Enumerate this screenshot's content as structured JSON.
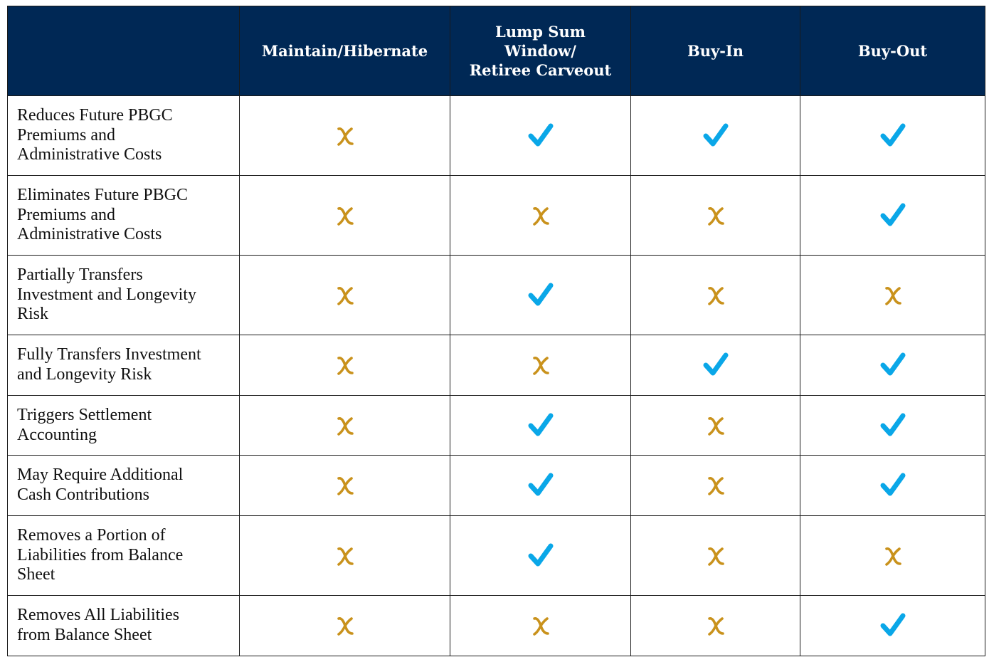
{
  "table": {
    "columns": [
      "",
      "Maintain/Hibernate",
      "Lump Sum Window/ Retiree Carveout",
      "Buy-In",
      "Buy-Out"
    ],
    "column_header_lines": [
      [],
      [
        "Maintain/Hibernate"
      ],
      [
        "Lump Sum",
        "Window/",
        "Retiree Carveout"
      ],
      [
        "Buy-In"
      ],
      [
        "Buy-Out"
      ]
    ],
    "rows": [
      {
        "label": "Reduces Future PBGC Premiums and Administrative Costs",
        "label_lines": [
          "Reduces Future PBGC",
          "Premiums and",
          "Administrative Costs"
        ],
        "values": [
          "x",
          "check",
          "check",
          "check"
        ]
      },
      {
        "label": "Eliminates Future PBGC Premiums and Administrative Costs",
        "label_lines": [
          "Eliminates Future PBGC",
          "Premiums and",
          "Administrative Costs"
        ],
        "values": [
          "x",
          "x",
          "x",
          "check"
        ]
      },
      {
        "label": "Partially Transfers Investment and Longevity Risk",
        "label_lines": [
          "Partially Transfers",
          "Investment and Longevity",
          "Risk"
        ],
        "values": [
          "x",
          "check",
          "x",
          "x"
        ]
      },
      {
        "label": "Fully Transfers Investment and Longevity Risk",
        "label_lines": [
          "Fully Transfers Investment",
          "and Longevity Risk"
        ],
        "values": [
          "x",
          "x",
          "check",
          "check"
        ]
      },
      {
        "label": "Triggers Settlement Accounting",
        "label_lines": [
          "Triggers Settlement",
          "Accounting"
        ],
        "values": [
          "x",
          "check",
          "x",
          "check"
        ]
      },
      {
        "label": "May Require Additional Cash Contributions",
        "label_lines": [
          "May Require Additional",
          "Cash Contributions"
        ],
        "values": [
          "x",
          "check",
          "x",
          "check"
        ]
      },
      {
        "label": "Removes a Portion of Liabilities from Balance Sheet",
        "label_lines": [
          "Removes a Portion of",
          "Liabilities from Balance",
          "Sheet"
        ],
        "values": [
          "x",
          "check",
          "x",
          "x"
        ]
      },
      {
        "label": "Removes All Liabilities from Balance Sheet",
        "label_lines": [
          "Removes All Liabilities",
          "from Balance Sheet"
        ],
        "values": [
          "x",
          "x",
          "x",
          "check"
        ]
      }
    ]
  },
  "icons": {
    "check": "check-icon",
    "x": "x-icon"
  },
  "colors": {
    "header_bg": "#002855",
    "header_text": "#ffffff",
    "check": "#0aa7e8",
    "x": "#c9921c",
    "border": "#1a1a1a"
  }
}
